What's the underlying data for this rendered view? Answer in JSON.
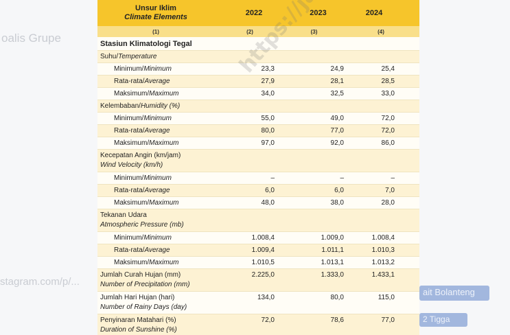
{
  "background": {
    "frag1": "oalis  Grupe",
    "frag2": "stagram.com/p/...",
    "frag3": "ait Bolanteng",
    "frag4": "2 Tigga"
  },
  "header": {
    "col0_id": "Unsur Iklim",
    "col0_en": "Climate Elements",
    "years": [
      "2022",
      "2023",
      "2024"
    ],
    "col_numbers": [
      "(1)",
      "(2)",
      "(3)",
      "(4)"
    ]
  },
  "station": "Stasiun Klimatologi Tegal",
  "sections": [
    {
      "title_id": "Suhu/",
      "title_en": "Temperature",
      "rows": [
        {
          "id": "Minimum/",
          "en": "Minimum",
          "values": [
            "23,3",
            "24,9",
            "25,4"
          ]
        },
        {
          "id": "Rata-rata/",
          "en": "Average",
          "values": [
            "27,9",
            "28,1",
            "28,5"
          ]
        },
        {
          "id": "Maksimum/",
          "en": "Maximum",
          "values": [
            "34,0",
            "32,5",
            "33,0"
          ]
        }
      ]
    },
    {
      "title_id": "Kelembaban/",
      "title_en": "Humidity (%)",
      "rows": [
        {
          "id": "Minimum/",
          "en": "Minimum",
          "values": [
            "55,0",
            "49,0",
            "72,0"
          ]
        },
        {
          "id": "Rata-rata/",
          "en": "Average",
          "values": [
            "80,0",
            "77,0",
            "72,0"
          ]
        },
        {
          "id": "Maksimum/",
          "en": "Maximum",
          "values": [
            "97,0",
            "92,0",
            "86,0"
          ]
        }
      ]
    },
    {
      "title_id": "Kecepatan Angin (km/jam)",
      "title_en": "Wind Velocity (km/h)",
      "rows": [
        {
          "id": "Minimum/",
          "en": "Minimum",
          "values": [
            "–",
            "–",
            "–"
          ]
        },
        {
          "id": "Rata-rata/",
          "en": "Average",
          "values": [
            "6,0",
            "6,0",
            "7,0"
          ]
        },
        {
          "id": "Maksimum/",
          "en": "Maximum",
          "values": [
            "48,0",
            "38,0",
            "28,0"
          ]
        }
      ]
    },
    {
      "title_id": "Tekanan Udara",
      "title_en": "Atmospheric Pressure (mb)",
      "rows": [
        {
          "id": "Minimum/",
          "en": "Minimum",
          "values": [
            "1.008,4",
            "1.009,0",
            "1.008,4"
          ]
        },
        {
          "id": "Rata-rata/",
          "en": "Average",
          "values": [
            "1.009,4",
            "1.011,1",
            "1.010,3"
          ]
        },
        {
          "id": "Maksimum/",
          "en": "Maximum",
          "values": [
            "1.010,5",
            "1.013,1",
            "1.013,2"
          ]
        }
      ]
    }
  ],
  "totals": [
    {
      "id": "Jumlah Curah Hujan (mm)",
      "en": "Number of Precipitation (mm)",
      "values": [
        "2.225,0",
        "1.333,0",
        "1.433,1"
      ]
    },
    {
      "id": "Jumlah Hari Hujan (hari)",
      "en": "Number of Rainy Days (day)",
      "values": [
        "134,0",
        "80,0",
        "115,0"
      ]
    },
    {
      "id": "Penyinaran Matahari (%)",
      "en": "Duration of Sunshine (%)",
      "values": [
        "72,0",
        "78,6",
        "77,0"
      ]
    }
  ],
  "watermark": "https://jateng.bps.go.id"
}
